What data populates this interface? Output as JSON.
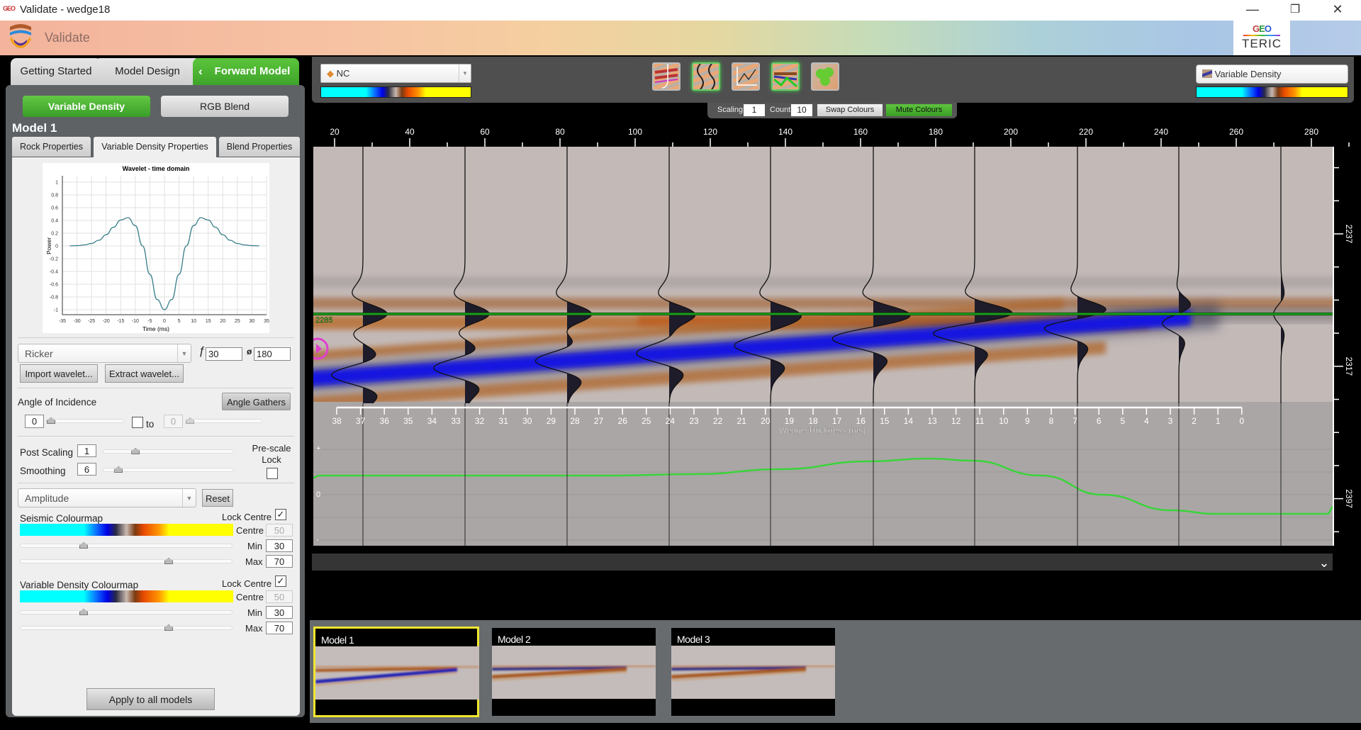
{
  "window": {
    "title": "Validate - wedge18",
    "logo_text": "GEO",
    "controls": [
      "minimize-icon",
      "restore-icon",
      "close-icon"
    ]
  },
  "header": {
    "app_name": "Validate",
    "brand_top": "GEO",
    "brand_bottom": "TERIC"
  },
  "workflow_tabs": [
    {
      "label": "Getting Started"
    },
    {
      "label": "Model Design"
    },
    {
      "label": "Forward Model",
      "active": true
    }
  ],
  "left": {
    "mode_buttons": [
      {
        "label": "Variable Density",
        "active": true
      },
      {
        "label": "RGB Blend"
      }
    ],
    "model_title": "Model 1",
    "sub_tabs": [
      {
        "label": "Rock Properties"
      },
      {
        "label": "Variable Density Properties",
        "active": true
      },
      {
        "label": "Blend Properties"
      }
    ],
    "wavelet": {
      "type": "Ricker",
      "freq_symbol": "ƒ",
      "freq": "30",
      "phase_symbol": "ø",
      "phase": "180",
      "import_label": "Import wavelet...",
      "extract_label": "Extract wavelet..."
    },
    "angle": {
      "label": "Angle of Incidence",
      "gathers_label": "Angle Gathers",
      "from": "0",
      "to_label": "to",
      "to": "0",
      "range_enabled": false
    },
    "post_scaling": {
      "label": "Post Scaling",
      "value": "1",
      "slider_level": 0.25
    },
    "smoothing": {
      "label": "Smoothing",
      "value": "6",
      "slider_level": 0.12
    },
    "prescale_lock": {
      "label": "Pre-scale Lock",
      "checked": false
    },
    "attribute": {
      "value": "Amplitude",
      "reset_label": "Reset"
    },
    "seismic_cmap": {
      "label": "Seismic Colourmap",
      "lock_label": "Lock Centre",
      "lock_checked": true,
      "centre_label": "Centre",
      "centre": "50",
      "min_label": "Min",
      "min": "30",
      "max_label": "Max",
      "max": "70"
    },
    "vd_cmap": {
      "label": "Variable Density Colourmap",
      "lock_label": "Lock Centre",
      "lock_checked": true,
      "centre_label": "Centre",
      "centre": "50",
      "min_label": "Min",
      "min": "30",
      "max_label": "Max",
      "max": "70"
    },
    "apply_label": "Apply to all models",
    "check_glyph": "✓"
  },
  "toolbar": {
    "left_select": "NC",
    "right_select": "Variable Density",
    "view_icons": [
      {
        "name": "well-log-view-icon",
        "active": false
      },
      {
        "name": "wiggle-traces-icon",
        "active": true
      },
      {
        "name": "amplitude-curve-icon",
        "active": false
      },
      {
        "name": "horizon-layers-icon",
        "active": true
      },
      {
        "name": "gather-bubbles-icon",
        "active": false
      }
    ],
    "scaling_label": "Scaling",
    "scaling": "1",
    "count_label": "Count",
    "count": "10",
    "swap_label": "Swap Colours",
    "mute_label": "Mute Colours"
  },
  "plot": {
    "top_axis_labels": [
      "20",
      "40",
      "60",
      "80",
      "100",
      "120",
      "140",
      "160",
      "180",
      "200",
      "220",
      "240",
      "260",
      "280"
    ],
    "horizon_label": "2285",
    "right_axis_labels": [
      "2237",
      "2317",
      "2397"
    ],
    "wedge_axis_labels": [
      "38",
      "37",
      "36",
      "35",
      "34",
      "33",
      "32",
      "31",
      "30",
      "29",
      "28",
      "27",
      "26",
      "25",
      "24",
      "23",
      "22",
      "21",
      "20",
      "19",
      "18",
      "17",
      "16",
      "15",
      "14",
      "13",
      "12",
      "11",
      "10",
      "9",
      "8",
      "7",
      "6",
      "5",
      "4",
      "3",
      "2",
      "1",
      "0"
    ],
    "wedge_axis_title": "Wedge Thickness (ms)",
    "amp_axis": {
      "plus": "+",
      "zero": "0",
      "minus": "-"
    },
    "colors": {
      "horizon": "#1f9e1f",
      "amplitude_curve": "#3ad43a",
      "trough": "#1414e0",
      "peak": "#b86a2c"
    },
    "collapse_glyph": "⌄"
  },
  "thumbnails": [
    {
      "label": "Model 1",
      "selected": true
    },
    {
      "label": "Model 2",
      "selected": false
    },
    {
      "label": "Model 3",
      "selected": false
    }
  ],
  "chart_data": {
    "type": "line",
    "title": "Wavelet - time domain",
    "xlabel": "Time (ms)",
    "ylabel": "Power",
    "xlim": [
      -35,
      35
    ],
    "ylim": [
      -1,
      1
    ],
    "xticks": [
      -35,
      -30,
      -25,
      -20,
      -15,
      -10,
      -5,
      0,
      5,
      10,
      15,
      20,
      25,
      30,
      35
    ],
    "yticks": [
      1,
      0.8,
      0.6,
      0.4,
      0.2,
      0,
      -0.2,
      -0.4,
      -0.6,
      -0.8,
      -1
    ],
    "grid": true,
    "x": [
      -32.5,
      -30,
      -27.5,
      -25,
      -22.5,
      -20,
      -17.5,
      -15,
      -12.5,
      -10,
      -7.5,
      -5,
      -2.5,
      0,
      2.5,
      5,
      7.5,
      10,
      12.5,
      15,
      17.5,
      20,
      22.5,
      25,
      27.5,
      30,
      32.5
    ],
    "y": [
      0.001,
      0.005,
      0.015,
      0.039,
      0.089,
      0.175,
      0.293,
      0.406,
      0.443,
      0.319,
      0,
      -0.445,
      -0.841,
      -1,
      -0.841,
      -0.445,
      0,
      0.319,
      0.443,
      0.406,
      0.293,
      0.175,
      0.089,
      0.039,
      0.015,
      0.005,
      0.001
    ],
    "color": "#3a7f8a"
  }
}
